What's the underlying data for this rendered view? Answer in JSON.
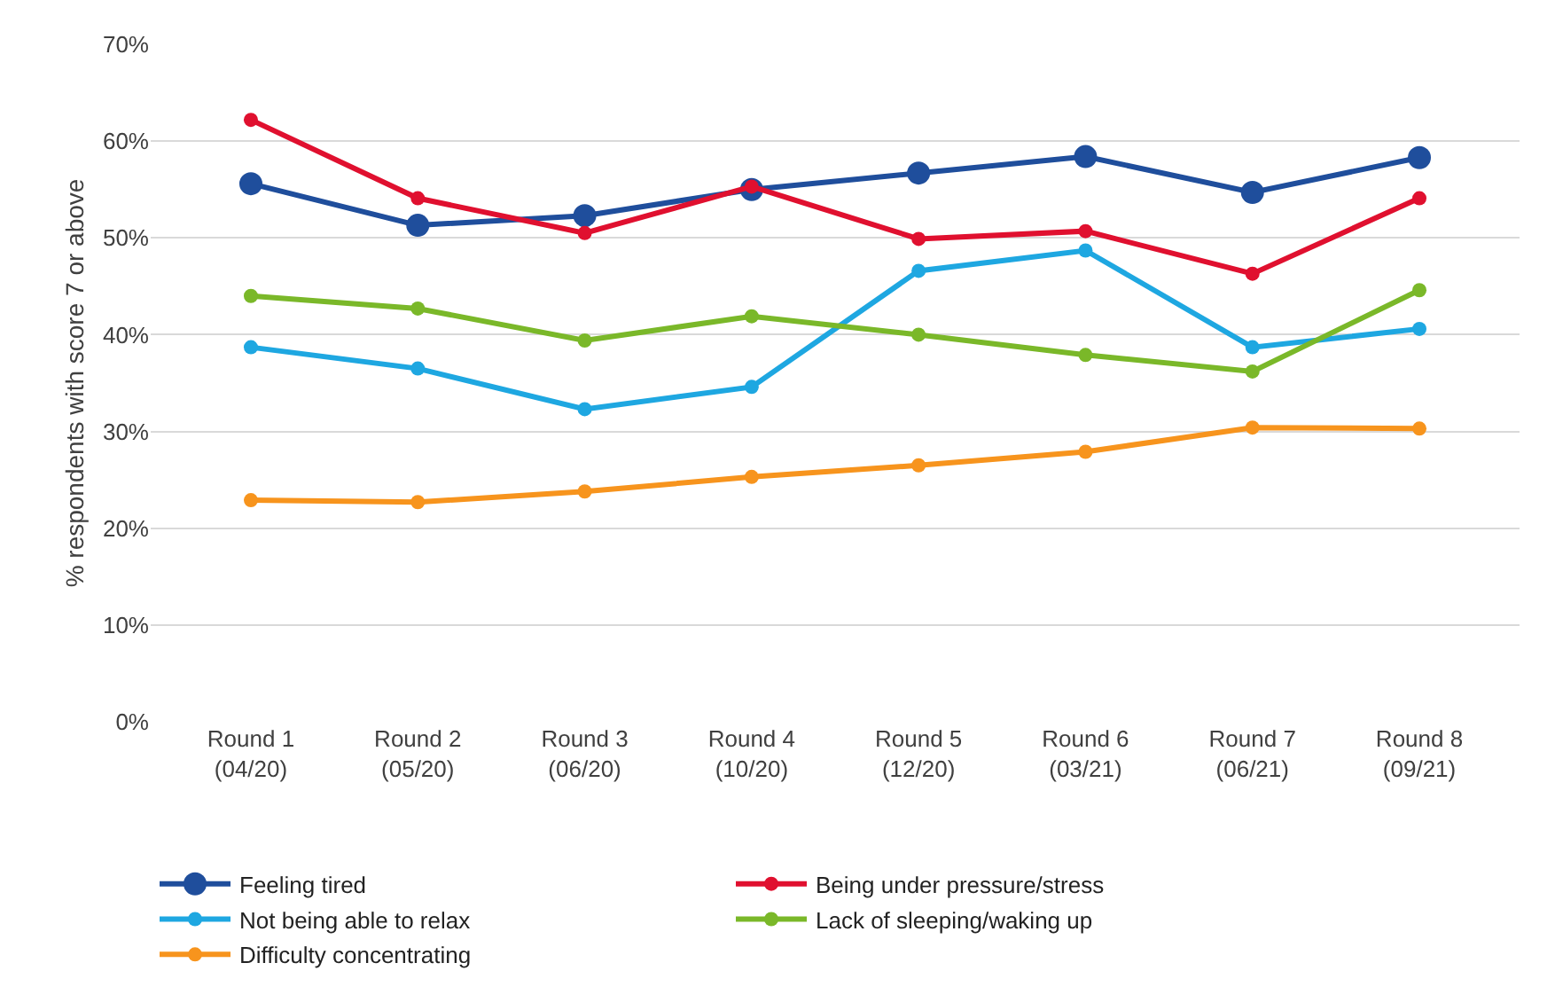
{
  "chart_data": {
    "type": "line",
    "ylabel": "% respondents with score 7 or above",
    "categories": [
      "Round 1\n(04/20)",
      "Round 2\n(05/20)",
      "Round 3\n(06/20)",
      "Round 4\n(10/20)",
      "Round 5\n(12/20)",
      "Round 6\n(03/21)",
      "Round 7\n(06/21)",
      "Round 8\n(09/21)"
    ],
    "series": [
      {
        "name": "Feeling tired",
        "color": "#1f4e9c",
        "values": [
          55.6,
          51.3,
          52.3,
          55.0,
          56.7,
          58.4,
          54.7,
          58.3
        ]
      },
      {
        "name": "Being under pressure/stress",
        "color": "#e0102f",
        "values": [
          62.2,
          54.1,
          50.5,
          55.3,
          49.9,
          50.7,
          46.3,
          54.1
        ]
      },
      {
        "name": "Not being able to relax",
        "color": "#1ea7e1",
        "values": [
          38.7,
          36.5,
          32.3,
          34.6,
          46.6,
          48.7,
          38.7,
          40.6
        ]
      },
      {
        "name": "Lack of sleeping/waking up",
        "color": "#7ab829",
        "values": [
          44.0,
          42.7,
          39.4,
          41.9,
          40.0,
          37.9,
          36.2,
          44.6
        ]
      },
      {
        "name": "Difficulty concentrating",
        "color": "#f7941d",
        "values": [
          22.9,
          22.7,
          23.8,
          25.3,
          26.5,
          27.9,
          30.4,
          30.3
        ]
      }
    ],
    "ylim": [
      0,
      70
    ],
    "yticks": [
      {
        "value": 0,
        "label": "0%"
      },
      {
        "value": 10,
        "label": "10%"
      },
      {
        "value": 20,
        "label": "20%"
      },
      {
        "value": 30,
        "label": "30%"
      },
      {
        "value": 40,
        "label": "40%"
      },
      {
        "value": 50,
        "label": "50%"
      },
      {
        "value": 60,
        "label": "60%"
      },
      {
        "value": 70,
        "label": "70%"
      }
    ],
    "grid": "y",
    "legend": "bottom",
    "marker": "circle",
    "line_style": "solid"
  }
}
